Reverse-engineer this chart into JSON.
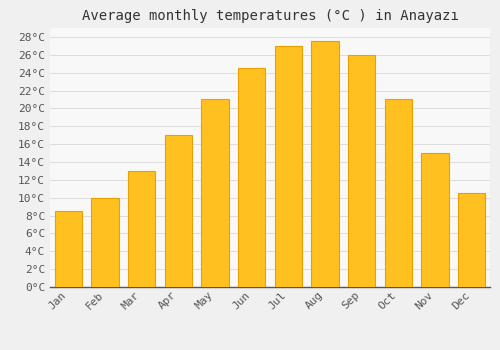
{
  "title": "Average monthly temperatures (°C ) in Anayazı",
  "months": [
    "Jan",
    "Feb",
    "Mar",
    "Apr",
    "May",
    "Jun",
    "Jul",
    "Aug",
    "Sep",
    "Oct",
    "Nov",
    "Dec"
  ],
  "values": [
    8.5,
    10.0,
    13.0,
    17.0,
    21.0,
    24.5,
    27.0,
    27.5,
    26.0,
    21.0,
    15.0,
    10.5
  ],
  "bar_color_top": "#FFC020",
  "bar_color_bottom": "#FFB000",
  "bar_edge_color": "#E8A000",
  "background_color": "#F0F0F0",
  "plot_bg_color": "#F8F8F8",
  "grid_color": "#DDDDDD",
  "ylim": [
    0,
    29
  ],
  "ytick_step": 2,
  "title_fontsize": 10,
  "tick_fontsize": 8,
  "font_family": "monospace"
}
